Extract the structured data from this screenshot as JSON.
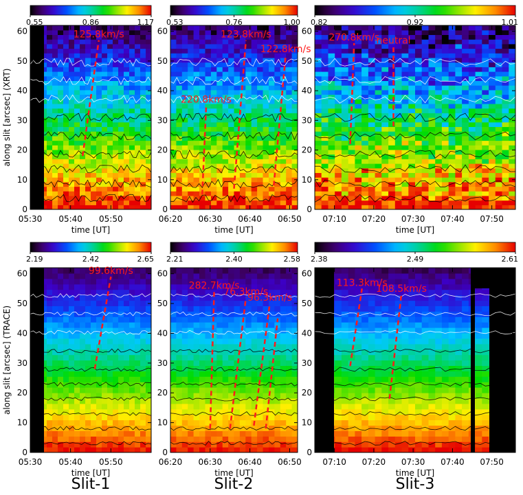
{
  "chart_data": [
    {
      "type": "heatmap",
      "instrument": "XRT",
      "slit": "Slit-1",
      "xlabel": "time [UT]",
      "ylabel": "along slit [arcsec] (XRT)",
      "x_ticks": [
        "05:30",
        "05:40",
        "05:50"
      ],
      "y_ticks": [
        "0",
        "10",
        "20",
        "30",
        "40",
        "50",
        "60"
      ],
      "colorbar_ticks": [
        "0.55",
        "0.86",
        "1.17"
      ],
      "velocities": [
        {
          "label": "125.8km/s",
          "from": {
            "t": "05:43",
            "y": 18
          },
          "to": {
            "t": "05:47",
            "y": 57
          }
        }
      ]
    },
    {
      "type": "heatmap",
      "instrument": "XRT",
      "slit": "Slit-2",
      "xlabel": "time [UT]",
      "ylabel": "",
      "x_ticks": [
        "06:20",
        "06:30",
        "06:40",
        "06:50"
      ],
      "y_ticks": [
        "0",
        "10",
        "20",
        "30",
        "40",
        "50",
        "60"
      ],
      "colorbar_ticks": [
        "0.53",
        "0.76",
        "1.00"
      ],
      "velocities": [
        {
          "label": "220.8km/s",
          "from": {
            "t": "06:28",
            "y": 5
          },
          "to": {
            "t": "06:29",
            "y": 35
          }
        },
        {
          "label": "123.8km/s",
          "from": {
            "t": "06:36",
            "y": 7
          },
          "to": {
            "t": "06:39",
            "y": 57
          }
        },
        {
          "label": "122.8km/s",
          "from": {
            "t": "06:46",
            "y": 8
          },
          "to": {
            "t": "06:49",
            "y": 52
          }
        }
      ]
    },
    {
      "type": "heatmap",
      "instrument": "XRT",
      "slit": "Slit-3",
      "xlabel": "time [UT]",
      "ylabel": "",
      "x_ticks": [
        "07:10",
        "07:20",
        "07:30",
        "07:40",
        "07:50"
      ],
      "y_ticks": [
        "0",
        "10",
        "20",
        "30",
        "40",
        "50",
        "60"
      ],
      "colorbar_ticks": [
        "0.82",
        "0.92",
        "1.01"
      ],
      "velocities": [
        {
          "label": "270.8km/s",
          "from": {
            "t": "07:14",
            "y": 22
          },
          "to": {
            "t": "07:15",
            "y": 56
          }
        },
        {
          "label": "neutral",
          "from": {
            "t": "07:25",
            "y": 28
          },
          "to": {
            "t": "07:25",
            "y": 55
          }
        }
      ]
    },
    {
      "type": "heatmap",
      "instrument": "TRACE",
      "slit": "Slit-1",
      "xlabel": "time [UT]",
      "ylabel": "along slit [arcsec] (TRACE)",
      "x_ticks": [
        "05:30",
        "05:40",
        "05:50"
      ],
      "y_ticks": [
        "0",
        "10",
        "20",
        "30",
        "40",
        "50",
        "60"
      ],
      "colorbar_ticks": [
        "2.19",
        "2.42",
        "2.65"
      ],
      "velocities": [
        {
          "label": "99.6km/s",
          "from": {
            "t": "05:46",
            "y": 28
          },
          "to": {
            "t": "05:50",
            "y": 59
          }
        }
      ]
    },
    {
      "type": "heatmap",
      "instrument": "TRACE",
      "slit": "Slit-2",
      "xlabel": "time [UT]",
      "ylabel": "",
      "x_ticks": [
        "06:20",
        "06:30",
        "06:40",
        "06:50"
      ],
      "y_ticks": [
        "0",
        "10",
        "20",
        "30",
        "40",
        "50",
        "60"
      ],
      "colorbar_ticks": [
        "2.21",
        "2.40",
        "2.58"
      ],
      "velocities": [
        {
          "label": "282.7km/s",
          "from": {
            "t": "06:30",
            "y": 8
          },
          "to": {
            "t": "06:31",
            "y": 54
          }
        },
        {
          "label": "76.3km/s",
          "from": {
            "t": "06:35",
            "y": 8
          },
          "to": {
            "t": "06:39",
            "y": 52
          }
        },
        {
          "label": "96.3km/s",
          "from": {
            "t": "06:41",
            "y": 9
          },
          "to": {
            "t": "06:45",
            "y": 50
          }
        },
        {
          "label": "",
          "from": {
            "t": "06:44",
            "y": 8
          },
          "to": {
            "t": "06:47",
            "y": 45
          }
        }
      ]
    },
    {
      "type": "heatmap",
      "instrument": "TRACE",
      "slit": "Slit-3",
      "xlabel": "time [UT]",
      "ylabel": "",
      "x_ticks": [
        "07:10",
        "07:20",
        "07:30",
        "07:40",
        "07:50"
      ],
      "y_ticks": [
        "0",
        "10",
        "20",
        "30",
        "40",
        "50",
        "60"
      ],
      "colorbar_ticks": [
        "2.38",
        "2.49",
        "2.61"
      ],
      "velocities": [
        {
          "label": "113.3km/s",
          "from": {
            "t": "07:14",
            "y": 29
          },
          "to": {
            "t": "07:17",
            "y": 55
          }
        },
        {
          "label": "108.5km/s",
          "from": {
            "t": "07:24",
            "y": 18
          },
          "to": {
            "t": "07:27",
            "y": 53
          }
        }
      ]
    }
  ],
  "slit_labels": [
    "Slit-1",
    "Slit-2",
    "Slit-3"
  ],
  "colors": {
    "velocity_line": "#ff1a1a",
    "contour_light": "#ffffff",
    "contour_dark": "#000000"
  }
}
